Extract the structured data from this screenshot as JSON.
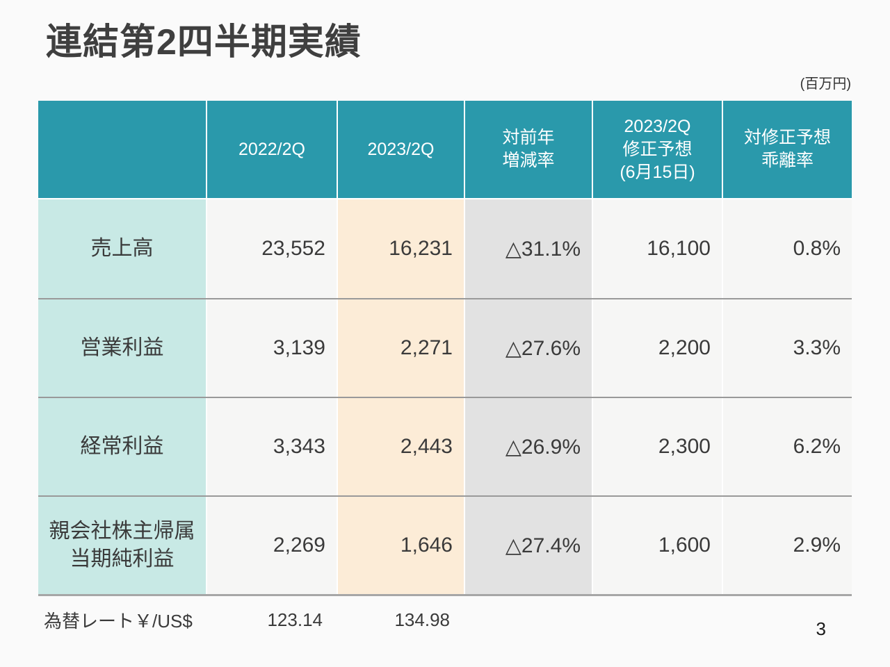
{
  "slide": {
    "title": "連結第2四半期実績",
    "unit_label": "(百万円)",
    "page_number": "3"
  },
  "table": {
    "headers": [
      {
        "lines": []
      },
      {
        "lines": [
          "2022/2Q"
        ]
      },
      {
        "lines": [
          "2023/2Q"
        ]
      },
      {
        "lines": [
          "対前年",
          "増減率"
        ]
      },
      {
        "lines": [
          "2023/2Q",
          "修正予想",
          "(6月15日)"
        ]
      },
      {
        "lines": [
          "対修正予想",
          "乖離率"
        ]
      }
    ],
    "rows": [
      {
        "label_lines": [
          "売上高"
        ],
        "y2022": "23,552",
        "y2023": "16,231",
        "yoy": "△31.1%",
        "forecast": "16,100",
        "deviation": "0.8%"
      },
      {
        "label_lines": [
          "営業利益"
        ],
        "y2022": "3,139",
        "y2023": "2,271",
        "yoy": "△27.6%",
        "forecast": "2,200",
        "deviation": "3.3%"
      },
      {
        "label_lines": [
          "経常利益"
        ],
        "y2022": "3,343",
        "y2023": "2,443",
        "yoy": "△26.9%",
        "forecast": "2,300",
        "deviation": "6.2%"
      },
      {
        "label_lines": [
          "親会社株主帰属",
          "当期純利益"
        ],
        "y2022": "2,269",
        "y2023": "1,646",
        "yoy": "△27.4%",
        "forecast": "1,600",
        "deviation": "2.9%"
      }
    ],
    "footer": {
      "label": "為替レート￥/US$",
      "y2022": "123.14",
      "y2023": "134.98"
    }
  },
  "colors": {
    "header_bg": "#2a99ab",
    "label_col_bg": "#c8e9e5",
    "value_col_bg": "#f6f6f5",
    "current_col_bg": "#fcecd7",
    "yoy_col_bg": "#e2e2e2",
    "row_separator": "#999999",
    "table_bottom_border": "#a6a6a6",
    "page_bg": "#fafafa"
  }
}
